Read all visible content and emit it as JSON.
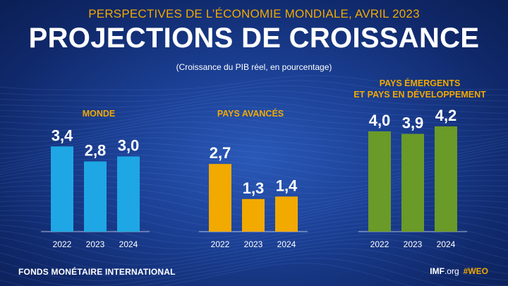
{
  "header": {
    "supertitle": "PERSPECTIVES DE L’ÉCONOMIE MONDIALE, AVRIL 2023",
    "title": "PROJECTIONS DE CROISSANCE",
    "subtitle": "(Croissance du PIB réel, en pourcentage)"
  },
  "groups": {
    "world": {
      "title": "MONDE"
    },
    "advanced": {
      "title": "PAYS AVANCÉS"
    },
    "emerging": {
      "title_line1": "PAYS ÉMERGENTS",
      "title_line2": "ET PAYS EN DÉVELOPPEMENT"
    }
  },
  "footer": {
    "org": "FONDS MONÉTAIRE INTERNATIONAL",
    "site_prefix": "IMF",
    "site_suffix": ".org",
    "hashtag": "#WEO"
  },
  "colors": {
    "world": "#1ea7e4",
    "advanced": "#f2a900",
    "emerging": "#6a9a28",
    "accent": "#f2a900",
    "background": "#1b3f93"
  },
  "chart_data": [
    {
      "type": "bar",
      "title": "MONDE",
      "categories": [
        "2022",
        "2023",
        "2024"
      ],
      "values": [
        3.4,
        2.8,
        3.0
      ],
      "value_labels": [
        "3,4",
        "2,8",
        "3,0"
      ]
    },
    {
      "type": "bar",
      "title": "PAYS AVANCÉS",
      "categories": [
        "2022",
        "2023",
        "2024"
      ],
      "values": [
        2.7,
        1.3,
        1.4
      ],
      "value_labels": [
        "2,7",
        "1,3",
        "1,4"
      ]
    },
    {
      "type": "bar",
      "title": "PAYS ÉMERGENTS ET PAYS EN DÉVELOPPEMENT",
      "categories": [
        "2022",
        "2023",
        "2024"
      ],
      "values": [
        4.0,
        3.9,
        4.2
      ],
      "value_labels": [
        "4,0",
        "3,9",
        "4,2"
      ]
    }
  ]
}
